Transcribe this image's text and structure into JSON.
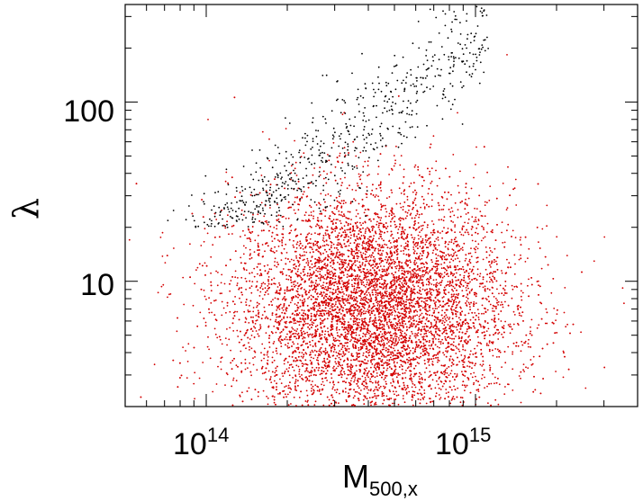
{
  "chart_data": {
    "type": "scatter",
    "title": "",
    "xlabel": {
      "main": "M",
      "sub": "500,x"
    },
    "ylabel": "λ",
    "xscale": "log",
    "yscale": "log",
    "xlim": [
      50000000000000.0,
      4000000000000000.0
    ],
    "ylim": [
      2,
      350
    ],
    "grid": false,
    "legend": "none",
    "xticks": [
      {
        "value": 100000000000000.0,
        "base": "10",
        "exponent": "14"
      },
      {
        "value": 1000000000000000.0,
        "base": "10",
        "exponent": "15"
      }
    ],
    "yticks": [
      {
        "value": 10,
        "label": "10"
      },
      {
        "value": 100,
        "label": "100"
      }
    ],
    "series": [
      {
        "color": "#d40000",
        "sampled": true,
        "count": 9000,
        "distribution": {
          "log10_mass_center": 14.62,
          "log10_mass_sigma": 0.26,
          "log10_lambda_center": 0.85,
          "log10_lambda_sigma": 0.33
        }
      },
      {
        "color": "#000000",
        "sampled": true,
        "count": 650,
        "distribution": {
          "log10_mass_range": [
            13.85,
            15.05
          ],
          "relation_log10_lambda_at_1e14": 1.18,
          "relation_slope": 1.15,
          "scatter": 0.15,
          "min_log10_lambda": 1.3
        }
      }
    ]
  }
}
